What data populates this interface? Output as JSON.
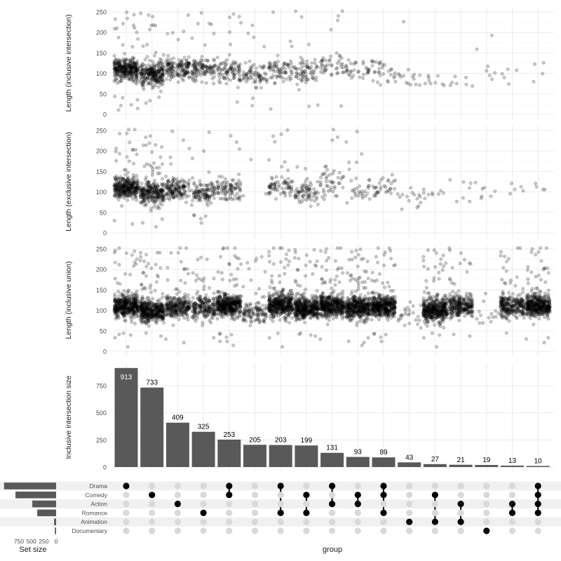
{
  "chart_data": {
    "type": "upset",
    "x_axis_label": "group",
    "set_size_label": "Set size",
    "set_size_ticks": [
      "750",
      "500",
      "250",
      "0"
    ],
    "set_size_tick_values": [
      750,
      500,
      250,
      0
    ],
    "sets": [
      "Drama",
      "Comedy",
      "Action",
      "Romance",
      "Animation",
      "Documentary"
    ],
    "set_sizes": [
      1050,
      820,
      480,
      380,
      40,
      25
    ],
    "intersections": [
      {
        "members": [
          "Drama"
        ],
        "size": 913
      },
      {
        "members": [
          "Comedy"
        ],
        "size": 733
      },
      {
        "members": [
          "Action"
        ],
        "size": 409
      },
      {
        "members": [
          "Romance"
        ],
        "size": 325
      },
      {
        "members": [
          "Drama",
          "Comedy"
        ],
        "size": 253
      },
      {
        "members": [],
        "size": 205
      },
      {
        "members": [
          "Drama",
          "Romance"
        ],
        "size": 203
      },
      {
        "members": [
          "Comedy",
          "Romance"
        ],
        "size": 199
      },
      {
        "members": [
          "Drama",
          "Action"
        ],
        "size": 131
      },
      {
        "members": [
          "Comedy",
          "Action"
        ],
        "size": 93
      },
      {
        "members": [
          "Drama",
          "Comedy",
          "Romance"
        ],
        "size": 89
      },
      {
        "members": [
          "Animation"
        ],
        "size": 43
      },
      {
        "members": [
          "Comedy",
          "Animation"
        ],
        "size": 27
      },
      {
        "members": [
          "Action",
          "Animation"
        ],
        "size": 21
      },
      {
        "members": [
          "Documentary"
        ],
        "size": 19
      },
      {
        "members": [
          "Action",
          "Romance"
        ],
        "size": 13
      },
      {
        "members": [
          "Drama",
          "Comedy",
          "Action",
          "Romance"
        ],
        "size": 10
      }
    ],
    "bar_panel": {
      "ylabel": "Inclusive intersection size",
      "yticks": [
        "0",
        "250",
        "500",
        "750"
      ],
      "ytick_values": [
        0,
        250,
        500,
        750
      ],
      "ylim": [
        0,
        960
      ]
    },
    "scatter_panels": [
      {
        "ylabel": "Length (inclusive intersection)",
        "yticks": [
          "0",
          "50",
          "100",
          "150",
          "200",
          "250"
        ],
        "ytick_values": [
          0,
          50,
          100,
          150,
          200,
          250
        ],
        "ylim": [
          0,
          260
        ],
        "centers": [
          110,
          98,
          110,
          110,
          105,
          98,
          110,
          102,
          118,
          103,
          108,
          88,
          84,
          80,
          105,
          100,
          105
        ]
      },
      {
        "ylabel": "Length (exclusive intersection)",
        "yticks": [
          "0",
          "50",
          "100",
          "150",
          "200",
          "250"
        ],
        "ytick_values": [
          0,
          50,
          100,
          150,
          200,
          250
        ],
        "ylim": [
          0,
          260
        ],
        "centers": [
          112,
          95,
          105,
          100,
          105,
          100,
          115,
          100,
          120,
          100,
          110,
          85,
          85,
          85,
          105,
          100,
          110
        ]
      },
      {
        "ylabel": "Length (inclusive union)",
        "yticks": [
          "0",
          "50",
          "100",
          "150",
          "200",
          "250"
        ],
        "ytick_values": [
          0,
          50,
          100,
          150,
          200,
          250
        ],
        "ylim": [
          0,
          260
        ],
        "centers": [
          110,
          98,
          110,
          105,
          112,
          95,
          112,
          105,
          112,
          105,
          110,
          88,
          100,
          110,
          95,
          110,
          112
        ]
      }
    ],
    "colors": {
      "bar": "#595959",
      "dot_active": "#000000",
      "dot_inactive": "#d9d9d9",
      "point": "#000000",
      "grid": "#ebebeb",
      "stripe": "#f0f0f0"
    }
  }
}
